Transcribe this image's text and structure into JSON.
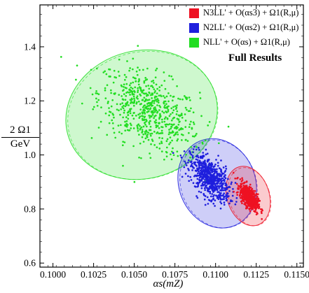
{
  "chart_data": {
    "type": "scatter",
    "title": "",
    "xlabel": "αs(mZ)",
    "ylabel_numerator": "2 Ω1",
    "ylabel_denominator": "GeV",
    "xlim": [
      0.0992,
      0.1154
    ],
    "ylim": [
      0.585,
      1.555
    ],
    "xticks": [
      0.1,
      0.1025,
      0.105,
      0.1075,
      0.11,
      0.1125,
      0.115
    ],
    "xtick_labels": [
      "0.1000",
      "0.1025",
      "0.1050",
      "0.1075",
      "0.1100",
      "0.1125",
      "0.1150"
    ],
    "yticks": [
      0.6,
      0.8,
      1.0,
      1.2,
      1.4
    ],
    "ytick_labels": [
      "0.6",
      "0.8",
      "1.0",
      "1.2",
      "1.4"
    ],
    "grid": false,
    "legend_placement": "top-right",
    "legend_title": "Full Results",
    "series": [
      {
        "name": "NLL' + O(αs) + Ω1(R,μ)",
        "color": "#22dd22",
        "center": {
          "x": 0.1059,
          "y": 1.16
        },
        "spread": {
          "x": 0.00155,
          "y": 0.078
        },
        "correlation": -0.45,
        "n_points": 650,
        "ellipse": {
          "cx": 0.10545,
          "cy": 1.149,
          "rx": 0.0047,
          "ry": 0.237,
          "tilt_deg": -14
        }
      },
      {
        "name": "N2LL' + O(αs2) + Ω1(R,μ)",
        "color": "#1f1fdd",
        "center": {
          "x": 0.10965,
          "y": 0.915
        },
        "spread": {
          "x": 0.0006,
          "y": 0.042
        },
        "correlation": -0.55,
        "n_points": 650,
        "ellipse": {
          "cx": 0.1101,
          "cy": 0.895,
          "rx": 0.00235,
          "ry": 0.169,
          "tilt_deg": -22
        }
      },
      {
        "name": "N3LL' + O(αs3) + Ω1(R,μ)",
        "color": "#ee1122",
        "center": {
          "x": 0.11205,
          "y": 0.845
        },
        "spread": {
          "x": 0.00028,
          "y": 0.024
        },
        "correlation": -0.6,
        "n_points": 650,
        "ellipse": {
          "cx": 0.112,
          "cy": 0.848,
          "rx": 0.0013,
          "ry": 0.113,
          "tilt_deg": -18
        }
      }
    ]
  }
}
